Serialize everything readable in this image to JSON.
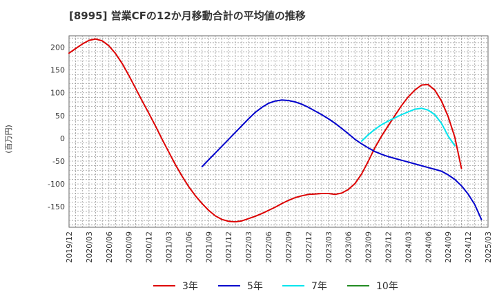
{
  "chart_data": {
    "type": "line",
    "title": "[8995]  営業CFの12か月移動合計の平均値の推移",
    "ylabel": "(百万円)",
    "xlabel": "",
    "ylim": [
      -195,
      225
    ],
    "yticks": [
      200,
      150,
      100,
      50,
      0,
      -50,
      -100,
      -150
    ],
    "x_tick_labels": [
      "2019/12",
      "2020/03",
      "2020/06",
      "2020/09",
      "2020/12",
      "2021/03",
      "2021/06",
      "2021/09",
      "2021/12",
      "2022/03",
      "2022/06",
      "2022/09",
      "2022/12",
      "2023/03",
      "2023/06",
      "2023/09",
      "2023/12",
      "2024/03",
      "2024/06",
      "2024/09",
      "2024/12",
      "2025/03"
    ],
    "grid": true,
    "legend_position": "bottom",
    "series": [
      {
        "name": "3年",
        "color": "#dd0000",
        "start": "2019/12",
        "values": [
          187,
          197,
          207,
          215,
          218,
          214,
          203,
          186,
          164,
          138,
          110,
          82,
          55,
          27,
          -2,
          -30,
          -58,
          -83,
          -106,
          -126,
          -143,
          -158,
          -170,
          -178,
          -182,
          -183,
          -181,
          -176,
          -171,
          -165,
          -158,
          -151,
          -143,
          -136,
          -130,
          -126,
          -123,
          -122,
          -121,
          -121,
          -123,
          -120,
          -112,
          -99,
          -78,
          -50,
          -20,
          5,
          28,
          50,
          72,
          91,
          106,
          117,
          118,
          106,
          82,
          48,
          3,
          -66
        ]
      },
      {
        "name": "5年",
        "color": "#0000cc",
        "start": "2021/08",
        "values": [
          -62,
          -47,
          -32,
          -17,
          -2,
          13,
          28,
          43,
          57,
          68,
          77,
          82,
          84,
          83,
          80,
          75,
          68,
          60,
          52,
          43,
          33,
          22,
          10,
          -2,
          -12,
          -21,
          -29,
          -35,
          -40,
          -44,
          -48,
          -52,
          -56,
          -60,
          -64,
          -68,
          -72,
          -80,
          -90,
          -104,
          -122,
          -145,
          -178
        ]
      },
      {
        "name": "7年",
        "color": "#00e5ee",
        "start": "2023/08",
        "values": [
          -6,
          8,
          20,
          30,
          38,
          45,
          52,
          58,
          64,
          66,
          62,
          52,
          33,
          5,
          -16
        ]
      },
      {
        "name": "10年",
        "color": "#228b22",
        "start": "2023/08",
        "values": []
      }
    ]
  }
}
